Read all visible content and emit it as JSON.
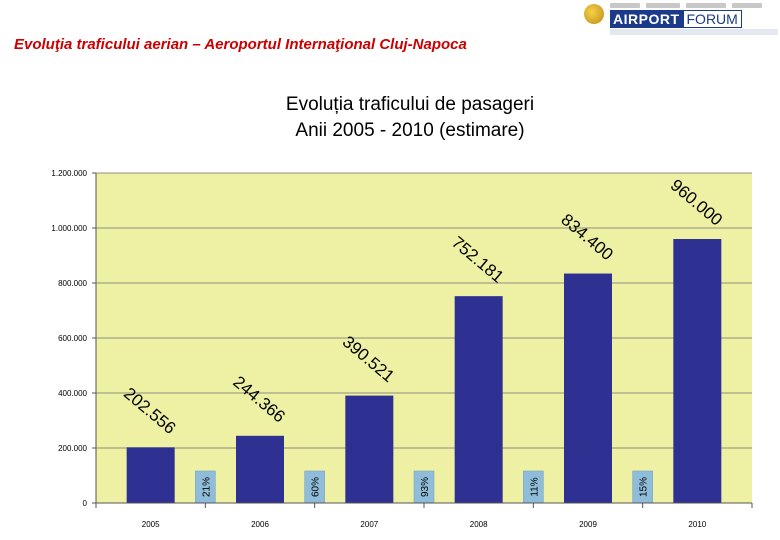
{
  "slide": {
    "heading": "Evoluţia traficului aerian – Aeroportul Internaţional Cluj-Napoca",
    "logo_text_a": "AIRPORT",
    "logo_text_b": "FORUM"
  },
  "colors": {
    "plot_bg": "#eef0a4",
    "bar": "#2e3192",
    "growth_bar": "#8fbcd8",
    "heading": "#cc0000"
  },
  "chart_data": {
    "type": "bar",
    "title_lines": [
      "Evoluția traficului de pasageri",
      "Anii  2005 - 2010 (estimare)"
    ],
    "categories": [
      "2005",
      "2006",
      "2007",
      "2008",
      "2009",
      "2010"
    ],
    "values": [
      202556,
      244366,
      390521,
      752181,
      834400,
      960000
    ],
    "value_labels": [
      "202.556",
      "244.366",
      "390.521",
      "752.181",
      "834.400",
      "960.000"
    ],
    "growth_labels": [
      "21%",
      "60%",
      "93%",
      "11%",
      "15%"
    ],
    "growth_values": [
      21,
      60,
      93,
      11,
      15
    ],
    "ylim": [
      0,
      1200000
    ],
    "yticks": [
      0,
      200000,
      400000,
      600000,
      800000,
      1000000,
      1200000
    ],
    "ytick_labels": [
      "0",
      "200.000",
      "400.000",
      "600.000",
      "800.000",
      "1.000.000",
      "1.200.000"
    ],
    "xlabel": "",
    "ylabel": "",
    "grid": true,
    "legend": "none"
  }
}
